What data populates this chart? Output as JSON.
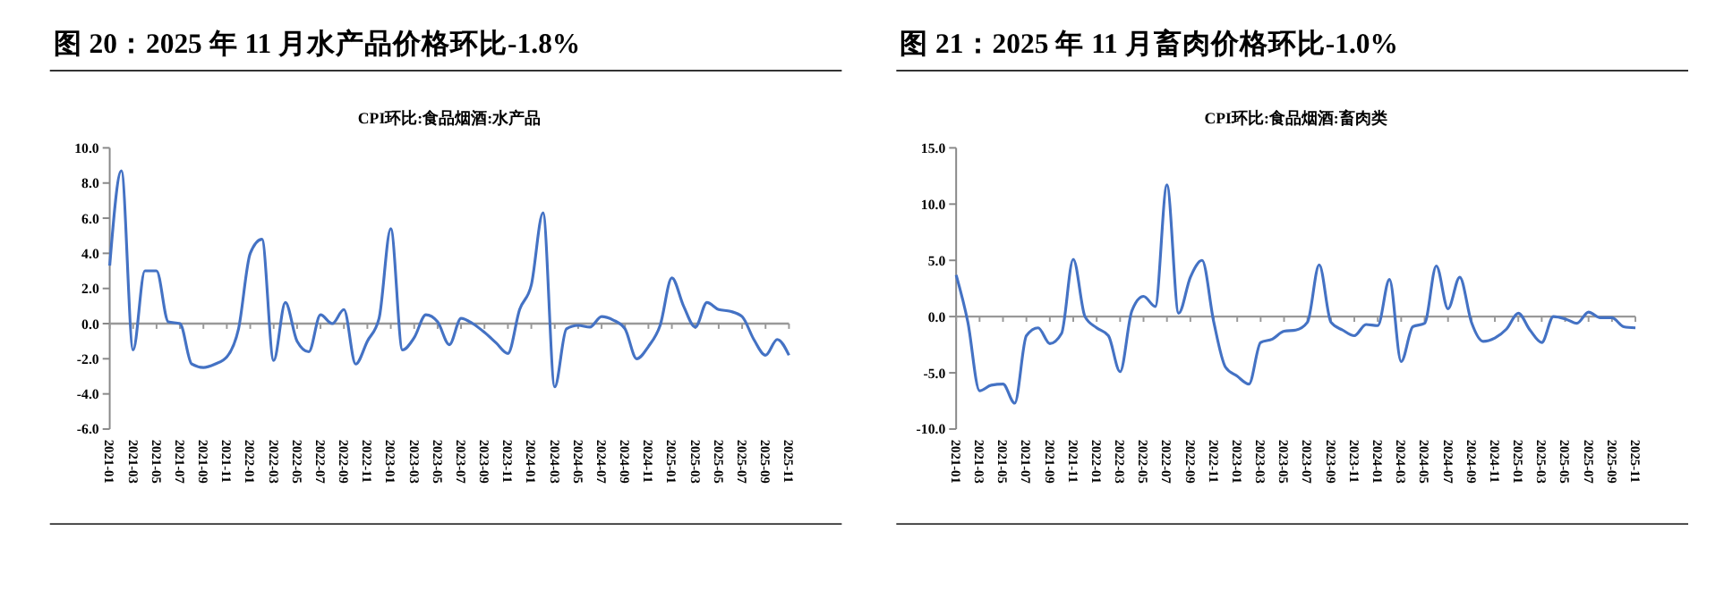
{
  "chart_data": [
    {
      "type": "line",
      "title": "图 20：2025 年 11 月水产品价格环比-1.8%",
      "subtitle": "CPI环比:食品烟酒:水产品",
      "categories": [
        "2021-01",
        null,
        "2021-03",
        null,
        "2021-05",
        null,
        "2021-07",
        null,
        "2021-09",
        null,
        "2021-11",
        null,
        "2022-01",
        null,
        "2022-03",
        null,
        "2022-05",
        null,
        "2022-07",
        null,
        "2022-09",
        null,
        "2022-11",
        null,
        "2023-01",
        null,
        "2023-03",
        null,
        "2023-05",
        null,
        "2023-07",
        null,
        "2023-09",
        null,
        "2023-11",
        null,
        "2024-01",
        null,
        "2024-03",
        null,
        "2024-05",
        null,
        "2024-07",
        null,
        "2024-09",
        null,
        "2024-11",
        null,
        "2025-01",
        null,
        "2025-03",
        null,
        "2025-05",
        null,
        "2025-07",
        null,
        "2025-09",
        null,
        "2025-11"
      ],
      "series": [
        {
          "color": "#4472c4",
          "values": [
            3.3,
            8.7,
            -1.5,
            3.0,
            3.0,
            0.1,
            0.0,
            -2.3,
            -2.5,
            -2.3,
            -1.9,
            -0.3,
            4.0,
            4.8,
            -2.1,
            1.2,
            -1.0,
            -1.6,
            0.5,
            0.0,
            0.8,
            -2.3,
            -1.0,
            0.3,
            5.4,
            -1.5,
            -0.8,
            0.5,
            0.1,
            -1.2,
            0.3,
            0.0,
            -0.5,
            -1.1,
            -1.7,
            0.8,
            2.2,
            6.3,
            -3.6,
            -0.3,
            -0.1,
            -0.2,
            0.4,
            0.2,
            -0.3,
            -2.0,
            -1.3,
            -0.1,
            2.6,
            1.0,
            -0.2,
            1.2,
            0.8,
            0.7,
            0.4,
            -0.9,
            -1.8,
            -0.9,
            -1.8
          ]
        }
      ],
      "ylim": [
        -6,
        10
      ],
      "yticks": [
        {
          "value": -6,
          "label": "-6.0"
        },
        {
          "value": -4,
          "label": "-4.0"
        },
        {
          "value": -2,
          "label": "-2.0"
        },
        {
          "value": 0,
          "label": "0.0"
        },
        {
          "value": 2,
          "label": "2.0"
        },
        {
          "value": 4,
          "label": "4.0"
        },
        {
          "value": 6,
          "label": "6.0"
        },
        {
          "value": 8,
          "label": "8.0"
        },
        {
          "value": 10,
          "label": "10.0"
        }
      ],
      "marker": "none",
      "line_style": "solid"
    },
    {
      "type": "line",
      "title": "图 21：2025 年 11 月畜肉价格环比-1.0%",
      "subtitle": "CPI环比:食品烟酒:畜肉类",
      "categories": [
        "2021-01",
        null,
        "2021-03",
        null,
        "2021-05",
        null,
        "2021-07",
        null,
        "2021-09",
        null,
        "2021-11",
        null,
        "2022-01",
        null,
        "2022-03",
        null,
        "2022-05",
        null,
        "2022-07",
        null,
        "2022-09",
        null,
        "2022-11",
        null,
        "2023-01",
        null,
        "2023-03",
        null,
        "2023-05",
        null,
        "2023-07",
        null,
        "2023-09",
        null,
        "2023-11",
        null,
        "2024-01",
        null,
        "2024-03",
        null,
        "2024-05",
        null,
        "2024-07",
        null,
        "2024-09",
        null,
        "2024-11",
        null,
        "2025-01",
        null,
        "2025-03",
        null,
        "2025-05",
        null,
        "2025-07",
        null,
        "2025-09",
        null,
        "2025-11"
      ],
      "series": [
        {
          "color": "#4472c4",
          "values": [
            3.7,
            -0.5,
            -6.6,
            -6.1,
            -6.0,
            -7.7,
            -1.7,
            -1.0,
            -2.4,
            -1.5,
            5.1,
            0.0,
            -1.0,
            -1.7,
            -4.9,
            0.5,
            1.8,
            0.9,
            11.7,
            0.3,
            3.5,
            5.0,
            -0.5,
            -4.5,
            -5.3,
            -6.0,
            -2.3,
            -2.0,
            -1.3,
            -1.2,
            -0.5,
            4.6,
            -0.5,
            -1.2,
            -1.7,
            -0.7,
            -0.8,
            3.3,
            -4.0,
            -0.9,
            -0.6,
            4.5,
            0.7,
            3.5,
            -0.5,
            -2.2,
            -1.9,
            -1.1,
            0.3,
            -1.2,
            -2.3,
            0.0,
            -0.2,
            -0.6,
            0.4,
            -0.1,
            -0.1,
            -0.9,
            -1.0
          ]
        }
      ],
      "ylim": [
        -10,
        15
      ],
      "yticks": [
        {
          "value": -10,
          "label": "-10.0"
        },
        {
          "value": -5,
          "label": "-5.0"
        },
        {
          "value": 0,
          "label": "0.0"
        },
        {
          "value": 5,
          "label": "5.0"
        },
        {
          "value": 10,
          "label": "10.0"
        },
        {
          "value": 15,
          "label": "15.0"
        }
      ],
      "marker": "none",
      "line_style": "solid"
    }
  ]
}
